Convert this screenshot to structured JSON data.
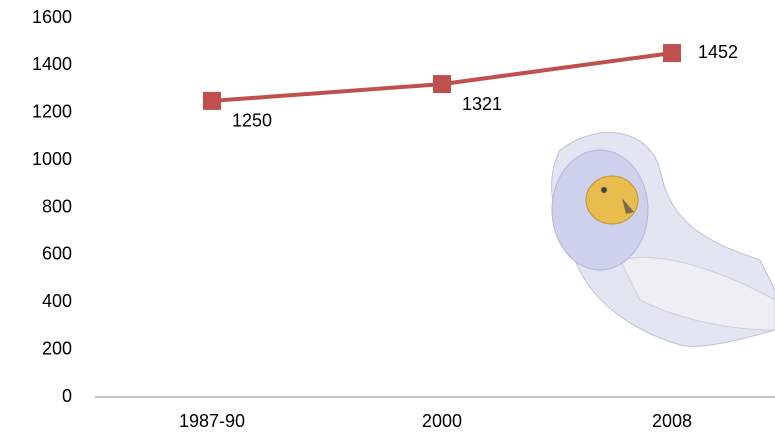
{
  "chart_data": {
    "type": "line",
    "categories": [
      "1987-90",
      "2000",
      "2008"
    ],
    "series": [
      {
        "values": [
          1250,
          1321,
          1452
        ],
        "color": "#c0504d"
      }
    ],
    "ylim": [
      0,
      1600
    ],
    "yticks": [
      0,
      200,
      400,
      600,
      800,
      1000,
      1200,
      1400,
      1600
    ],
    "grid": false
  }
}
